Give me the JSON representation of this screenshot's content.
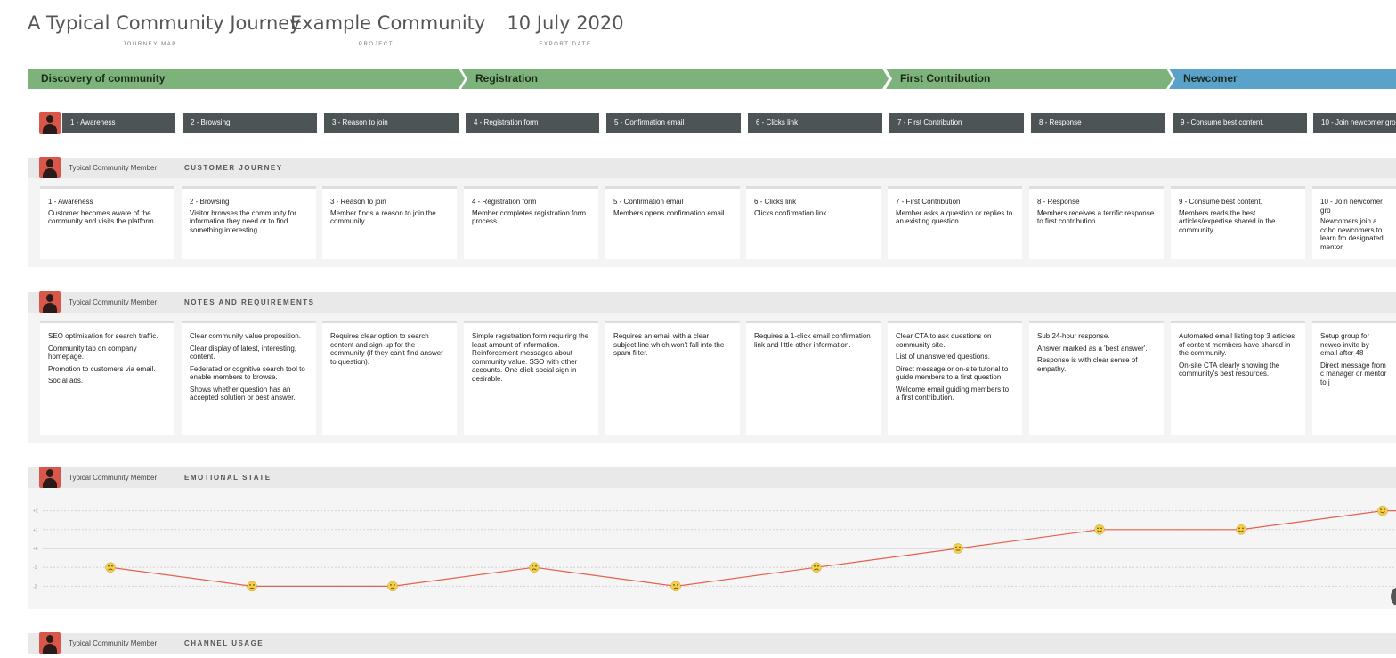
{
  "header": {
    "map_title": "A Typical Community Journey",
    "map_title_label": "JOURNEY MAP",
    "project": "Example Community",
    "project_label": "PROJECT",
    "export_date": "10 July 2020",
    "export_date_label": "EXPORT DATE"
  },
  "phases": [
    "Discovery of community",
    "Registration",
    "First Contribution",
    "Newcomer"
  ],
  "colors": {
    "phase_green": "#7db37a",
    "phase_blue": "#5ba2cb",
    "step_bg": "#4d5455",
    "avatar": "#d9574a",
    "emotion_line": "#e4604f",
    "emoji_face": "#f2cf4c"
  },
  "steps": [
    "1 - Awareness",
    "2 - Browsing",
    "3 - Reason to join",
    "4 - Registration form",
    "5 - Confirmation email",
    "6 - Clicks link",
    "7 - First Contribution",
    "8 - Response",
    "9 - Consume best content.",
    "10 - Join newcomer gro"
  ],
  "persona": "Typical Community Member",
  "customer_journey": {
    "title": "CUSTOMER JOURNEY",
    "cards": [
      {
        "title": "1 - Awareness",
        "text": "Customer becomes aware of the community and visits the platform."
      },
      {
        "title": "2 - Browsing",
        "text": "Visitor browses the community for information they need or to find something interesting."
      },
      {
        "title": "3 - Reason to join",
        "text": "Member finds a reason to join the community."
      },
      {
        "title": "4 - Registration form",
        "text": "Member completes registration form process."
      },
      {
        "title": "5 - Confirmation email",
        "text": "Members opens confirmation email."
      },
      {
        "title": "6 - Clicks link",
        "text": "Clicks confirmation link."
      },
      {
        "title": "7 - First Contribution",
        "text": "Member asks a question or replies to an existing question."
      },
      {
        "title": "8 - Response",
        "text": "Members receives a terrific response to first contribution."
      },
      {
        "title": "9 - Consume best content.",
        "text": "Members reads the best articles/expertise shared in the community."
      },
      {
        "title": "10 - Join newcomer gro",
        "text": "Newcomers join a coho newcomers to learn fro designated mentor."
      }
    ]
  },
  "notes": {
    "title": "NOTES AND REQUIREMENTS",
    "cards": [
      [
        "SEO optimisation for search traffic.",
        "Community tab on company homepage.",
        "Promotion to customers via email.",
        "Social ads."
      ],
      [
        "Clear community value proposition.",
        "Clear display of latest, interesting, content.",
        "Federated or cognitive search tool to enable members to browse.",
        "Shows whether question has an accepted solution or best answer."
      ],
      [
        "Requires clear option to search content and sign-up for the community (if they can't find answer to question)."
      ],
      [
        "Simple registration form requiring the least amount of information. Reinforcement messages about community value. SSO with other accounts. One click social sign in desirable."
      ],
      [
        "Requires an email with a clear subject line which won't fall into the spam filter."
      ],
      [
        "Requires a 1-click email confirmation link and little other information."
      ],
      [
        "Clear CTA to ask questions on community site.",
        "List of unanswered questions.",
        "Direct message or on-site tutorial to guide members to a first question.",
        "Welcome email guiding members to a first contribution."
      ],
      [
        "Sub 24-hour response.",
        "Answer marked as a 'best answer'.",
        "Response is with clear sense of empathy."
      ],
      [
        "Automated email listing top 3 articles of content members have shared in the community.",
        "On-site CTA clearly showing the community's best resources."
      ],
      [
        "Setup group for newco invite by email after 48",
        "Direct message from c manager or mentor to j"
      ]
    ]
  },
  "emotional_state": {
    "title": "EMOTIONAL STATE",
    "axis_labels": [
      "+2",
      "+1",
      "+0",
      "-1",
      "-2"
    ],
    "values": [
      -1,
      -2,
      -2,
      -1,
      -2,
      -1,
      0,
      1,
      1,
      2
    ]
  },
  "channel_usage": {
    "title": "CHANNEL USAGE"
  }
}
